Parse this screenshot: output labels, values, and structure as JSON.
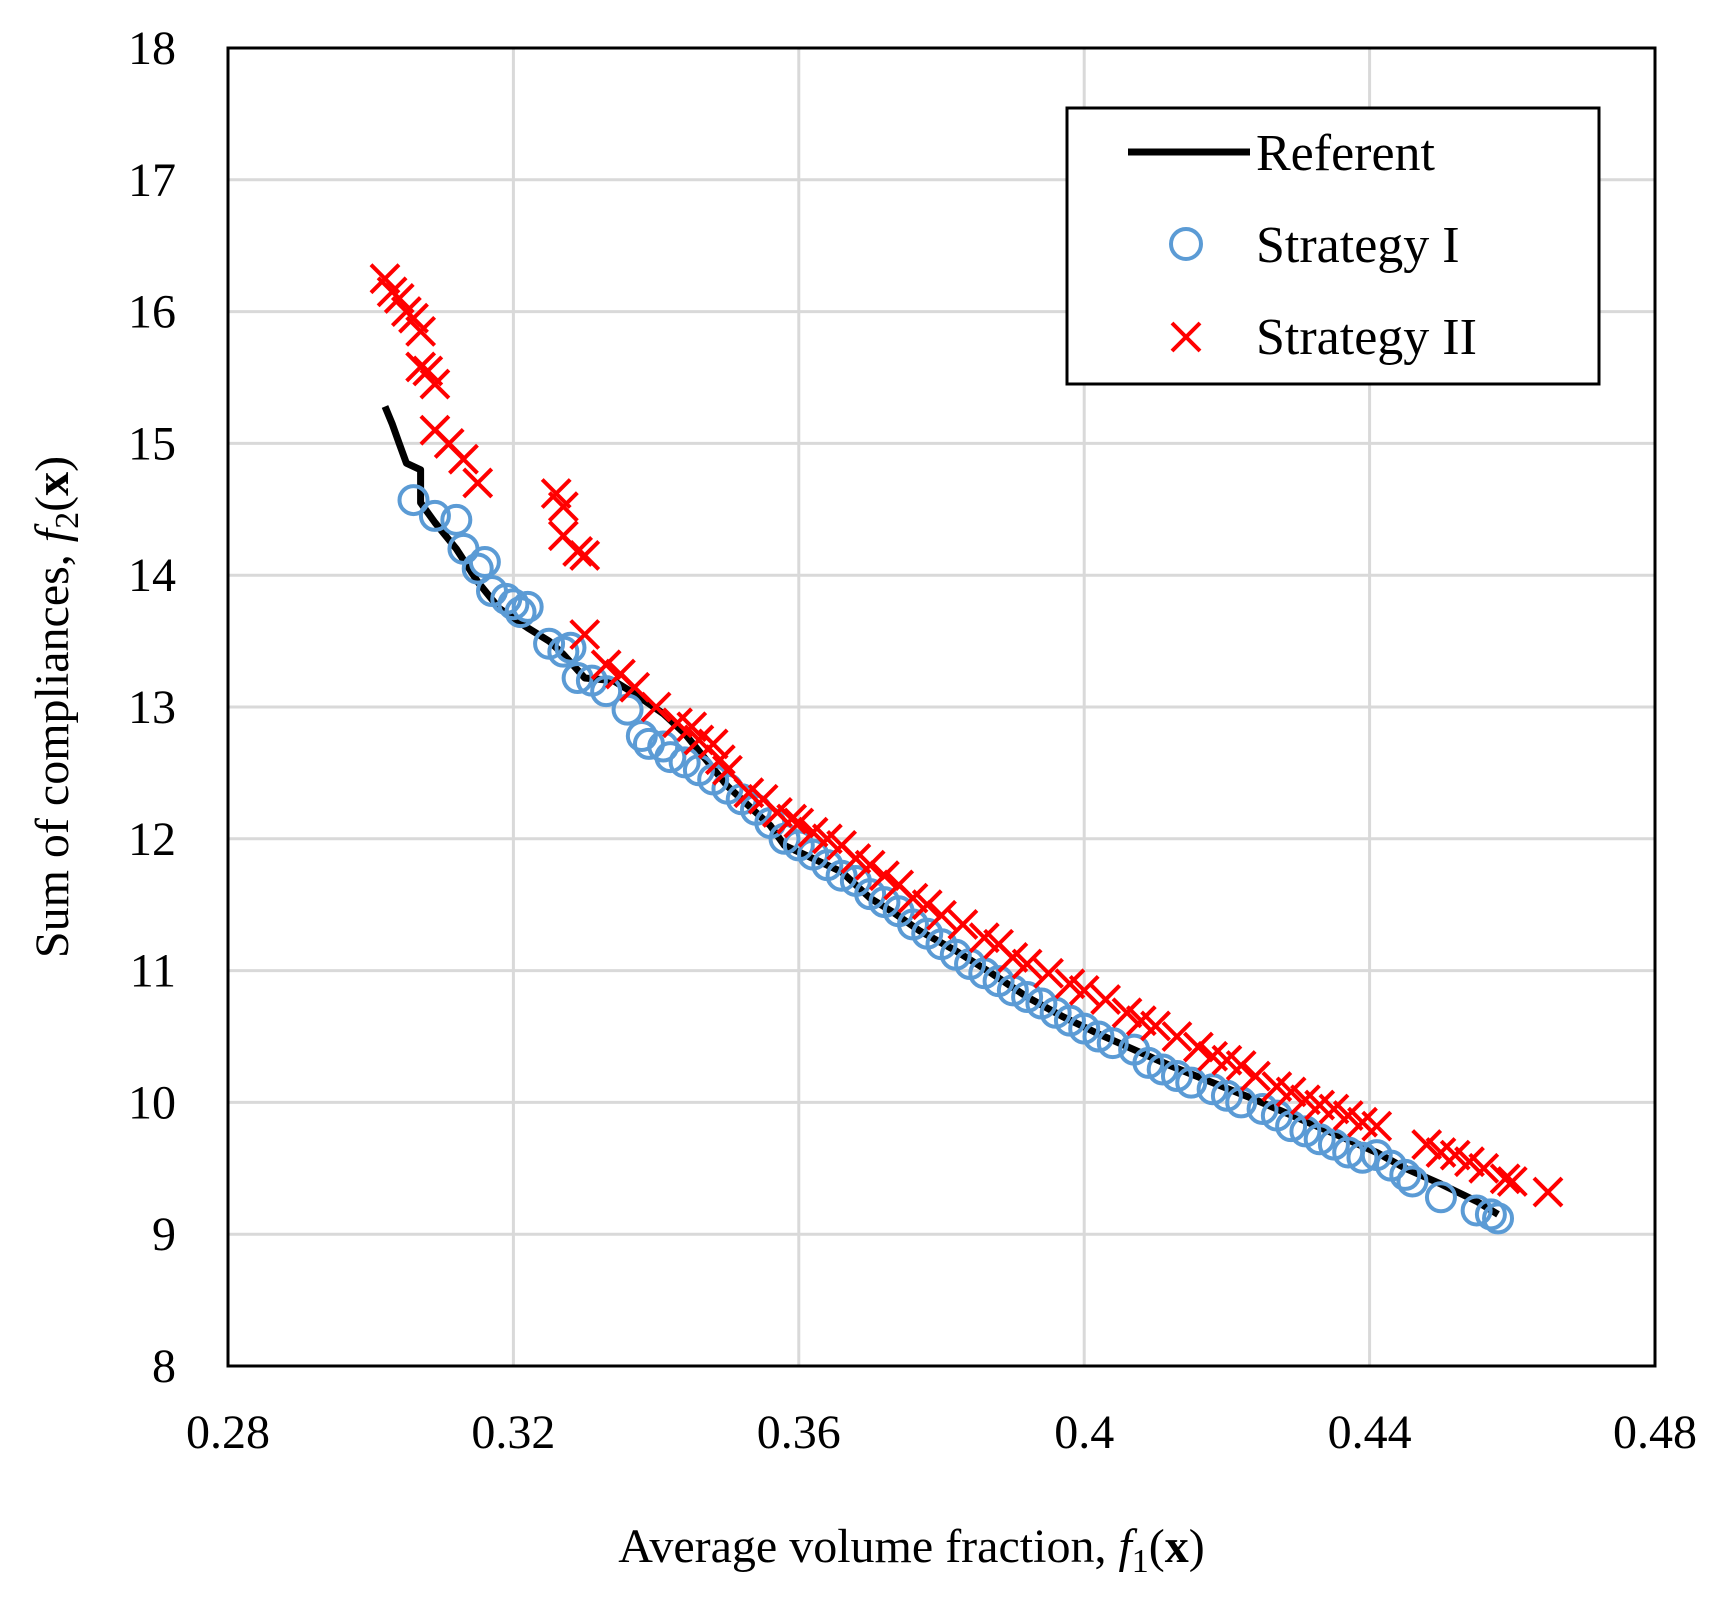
{
  "chart_data": {
    "type": "scatter",
    "title": "",
    "xlabel": "Average volume fraction, ",
    "xlabel_f": "f",
    "xlabel_sub": "1",
    "xlabel_paren": "(",
    "xlabel_x": "x",
    "xlabel_close": ")",
    "ylabel": "Sum of compliances, ",
    "ylabel_f": "f",
    "ylabel_sub": "2",
    "ylabel_paren": "(",
    "ylabel_x": "x",
    "ylabel_close": ")",
    "xlim": [
      0.28,
      0.48
    ],
    "ylim": [
      8,
      18
    ],
    "xticks": [
      0.28,
      0.32,
      0.36,
      0.4,
      0.44,
      0.48
    ],
    "xtick_labels": [
      "0.28",
      "0.32",
      "0.36",
      "0.4",
      "0.44",
      "0.48"
    ],
    "yticks": [
      8,
      9,
      10,
      11,
      12,
      13,
      14,
      15,
      16,
      17,
      18
    ],
    "ytick_labels": [
      "8",
      "9",
      "10",
      "11",
      "12",
      "13",
      "14",
      "15",
      "16",
      "17",
      "18"
    ],
    "grid": true,
    "legend_position": "top-right",
    "series": [
      {
        "name": "Referent",
        "kind": "line",
        "color": "#000000",
        "points": [
          [
            0.302,
            15.28
          ],
          [
            0.303,
            15.15
          ],
          [
            0.304,
            15.0
          ],
          [
            0.305,
            14.85
          ],
          [
            0.307,
            14.8
          ],
          [
            0.307,
            14.55
          ],
          [
            0.309,
            14.4
          ],
          [
            0.312,
            14.2
          ],
          [
            0.315,
            13.95
          ],
          [
            0.318,
            13.75
          ],
          [
            0.322,
            13.6
          ],
          [
            0.325,
            13.5
          ],
          [
            0.327,
            13.4
          ],
          [
            0.33,
            13.22
          ],
          [
            0.334,
            13.2
          ],
          [
            0.337,
            13.1
          ],
          [
            0.341,
            12.95
          ],
          [
            0.344,
            12.8
          ],
          [
            0.347,
            12.6
          ],
          [
            0.35,
            12.4
          ],
          [
            0.353,
            12.25
          ],
          [
            0.356,
            12.1
          ],
          [
            0.358,
            11.95
          ],
          [
            0.362,
            11.85
          ],
          [
            0.366,
            11.75
          ],
          [
            0.37,
            11.55
          ],
          [
            0.373,
            11.45
          ],
          [
            0.377,
            11.3
          ],
          [
            0.382,
            11.15
          ],
          [
            0.387,
            10.98
          ],
          [
            0.392,
            10.8
          ],
          [
            0.397,
            10.65
          ],
          [
            0.402,
            10.52
          ],
          [
            0.407,
            10.4
          ],
          [
            0.412,
            10.28
          ],
          [
            0.418,
            10.15
          ],
          [
            0.424,
            10.02
          ],
          [
            0.43,
            9.88
          ],
          [
            0.436,
            9.74
          ],
          [
            0.441,
            9.62
          ],
          [
            0.445,
            9.5
          ],
          [
            0.45,
            9.38
          ],
          [
            0.455,
            9.25
          ],
          [
            0.458,
            9.15
          ]
        ]
      },
      {
        "name": "Strategy I",
        "kind": "circle",
        "color": "#5b9bd5",
        "points": [
          [
            0.306,
            14.57
          ],
          [
            0.309,
            14.45
          ],
          [
            0.312,
            14.42
          ],
          [
            0.313,
            14.2
          ],
          [
            0.315,
            14.05
          ],
          [
            0.316,
            14.1
          ],
          [
            0.317,
            13.88
          ],
          [
            0.319,
            13.82
          ],
          [
            0.32,
            13.78
          ],
          [
            0.321,
            13.72
          ],
          [
            0.322,
            13.76
          ],
          [
            0.325,
            13.48
          ],
          [
            0.327,
            13.42
          ],
          [
            0.328,
            13.45
          ],
          [
            0.329,
            13.22
          ],
          [
            0.331,
            13.2
          ],
          [
            0.333,
            13.12
          ],
          [
            0.336,
            12.98
          ],
          [
            0.338,
            12.78
          ],
          [
            0.339,
            12.72
          ],
          [
            0.341,
            12.7
          ],
          [
            0.342,
            12.62
          ],
          [
            0.344,
            12.58
          ],
          [
            0.346,
            12.52
          ],
          [
            0.348,
            12.45
          ],
          [
            0.35,
            12.38
          ],
          [
            0.352,
            12.3
          ],
          [
            0.354,
            12.22
          ],
          [
            0.356,
            12.12
          ],
          [
            0.358,
            12.0
          ],
          [
            0.36,
            11.95
          ],
          [
            0.362,
            11.88
          ],
          [
            0.364,
            11.8
          ],
          [
            0.366,
            11.72
          ],
          [
            0.368,
            11.68
          ],
          [
            0.37,
            11.58
          ],
          [
            0.372,
            11.52
          ],
          [
            0.374,
            11.45
          ],
          [
            0.376,
            11.35
          ],
          [
            0.378,
            11.28
          ],
          [
            0.38,
            11.2
          ],
          [
            0.382,
            11.12
          ],
          [
            0.384,
            11.05
          ],
          [
            0.386,
            10.98
          ],
          [
            0.388,
            10.92
          ],
          [
            0.39,
            10.85
          ],
          [
            0.392,
            10.8
          ],
          [
            0.394,
            10.75
          ],
          [
            0.396,
            10.68
          ],
          [
            0.398,
            10.62
          ],
          [
            0.4,
            10.56
          ],
          [
            0.402,
            10.5
          ],
          [
            0.404,
            10.45
          ],
          [
            0.407,
            10.4
          ],
          [
            0.409,
            10.3
          ],
          [
            0.411,
            10.25
          ],
          [
            0.413,
            10.2
          ],
          [
            0.415,
            10.15
          ],
          [
            0.418,
            10.1
          ],
          [
            0.42,
            10.05
          ],
          [
            0.422,
            10.0
          ],
          [
            0.425,
            9.95
          ],
          [
            0.427,
            9.9
          ],
          [
            0.429,
            9.82
          ],
          [
            0.431,
            9.78
          ],
          [
            0.433,
            9.72
          ],
          [
            0.435,
            9.68
          ],
          [
            0.437,
            9.62
          ],
          [
            0.439,
            9.58
          ],
          [
            0.441,
            9.6
          ],
          [
            0.443,
            9.52
          ],
          [
            0.445,
            9.45
          ],
          [
            0.446,
            9.4
          ],
          [
            0.45,
            9.28
          ],
          [
            0.455,
            9.18
          ],
          [
            0.457,
            9.15
          ],
          [
            0.458,
            9.12
          ]
        ]
      },
      {
        "name": "Strategy II",
        "kind": "cross",
        "color": "#ff0000",
        "points": [
          [
            0.302,
            16.25
          ],
          [
            0.303,
            16.15
          ],
          [
            0.304,
            16.1
          ],
          [
            0.305,
            16.0
          ],
          [
            0.306,
            15.95
          ],
          [
            0.307,
            15.85
          ],
          [
            0.307,
            15.58
          ],
          [
            0.308,
            15.55
          ],
          [
            0.309,
            15.45
          ],
          [
            0.309,
            15.1
          ],
          [
            0.311,
            15.0
          ],
          [
            0.313,
            14.88
          ],
          [
            0.315,
            14.7
          ],
          [
            0.326,
            14.62
          ],
          [
            0.327,
            14.52
          ],
          [
            0.327,
            14.3
          ],
          [
            0.329,
            14.18
          ],
          [
            0.33,
            14.15
          ],
          [
            0.33,
            13.55
          ],
          [
            0.333,
            13.32
          ],
          [
            0.335,
            13.25
          ],
          [
            0.337,
            13.15
          ],
          [
            0.34,
            13.0
          ],
          [
            0.343,
            12.88
          ],
          [
            0.345,
            12.85
          ],
          [
            0.346,
            12.75
          ],
          [
            0.348,
            12.72
          ],
          [
            0.349,
            12.6
          ],
          [
            0.35,
            12.52
          ],
          [
            0.353,
            12.35
          ],
          [
            0.355,
            12.3
          ],
          [
            0.357,
            12.2
          ],
          [
            0.359,
            12.15
          ],
          [
            0.36,
            12.12
          ],
          [
            0.362,
            12.05
          ],
          [
            0.364,
            12.0
          ],
          [
            0.366,
            11.95
          ],
          [
            0.368,
            11.85
          ],
          [
            0.37,
            11.8
          ],
          [
            0.372,
            11.72
          ],
          [
            0.374,
            11.65
          ],
          [
            0.376,
            11.55
          ],
          [
            0.378,
            11.5
          ],
          [
            0.38,
            11.42
          ],
          [
            0.383,
            11.35
          ],
          [
            0.386,
            11.25
          ],
          [
            0.388,
            11.2
          ],
          [
            0.39,
            11.1
          ],
          [
            0.392,
            11.05
          ],
          [
            0.395,
            10.98
          ],
          [
            0.398,
            10.9
          ],
          [
            0.4,
            10.85
          ],
          [
            0.403,
            10.78
          ],
          [
            0.406,
            10.68
          ],
          [
            0.408,
            10.62
          ],
          [
            0.41,
            10.58
          ],
          [
            0.413,
            10.5
          ],
          [
            0.416,
            10.42
          ],
          [
            0.418,
            10.35
          ],
          [
            0.42,
            10.32
          ],
          [
            0.422,
            10.28
          ],
          [
            0.424,
            10.2
          ],
          [
            0.427,
            10.12
          ],
          [
            0.429,
            10.08
          ],
          [
            0.431,
            10.02
          ],
          [
            0.433,
            9.98
          ],
          [
            0.435,
            9.95
          ],
          [
            0.437,
            9.9
          ],
          [
            0.439,
            9.85
          ],
          [
            0.441,
            9.82
          ],
          [
            0.448,
            9.68
          ],
          [
            0.45,
            9.62
          ],
          [
            0.452,
            9.6
          ],
          [
            0.454,
            9.55
          ],
          [
            0.456,
            9.5
          ],
          [
            0.459,
            9.42
          ],
          [
            0.46,
            9.4
          ],
          [
            0.465,
            9.32
          ]
        ]
      }
    ]
  }
}
